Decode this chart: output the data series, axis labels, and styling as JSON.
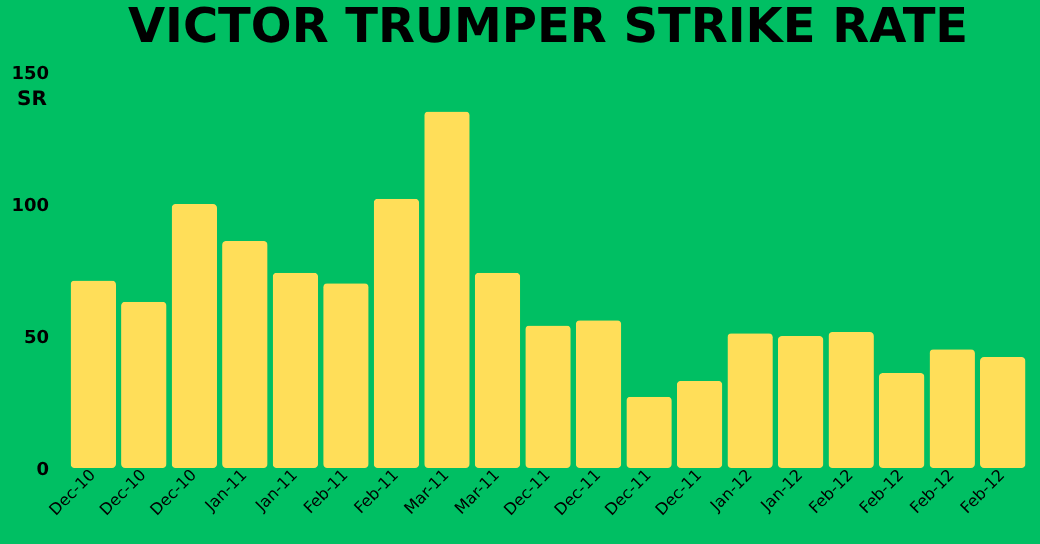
{
  "chart_data": {
    "type": "bar",
    "title": "VICTOR TRUMPER STRIKE RATE",
    "ylabel": "SR",
    "categories": [
      "Dec-10",
      "Dec-10",
      "Dec-10",
      "Jan-11",
      "Jan-11",
      "Feb-11",
      "Feb-11",
      "Mar-11",
      "Mar-11",
      "Dec-11",
      "Dec-11",
      "Dec-11",
      "Dec-11",
      "Jan-12",
      "Jan-12",
      "Feb-12",
      "Feb-12",
      "Feb-12",
      "Feb-12"
    ],
    "values": [
      71,
      63,
      100,
      86,
      74,
      70,
      102,
      135,
      74,
      54,
      56,
      27,
      33,
      51,
      50,
      51.5,
      36,
      45,
      42
    ],
    "color": "#ffde59",
    "ylim": [
      0,
      150
    ],
    "yticks": [
      0,
      50,
      100,
      150
    ]
  }
}
